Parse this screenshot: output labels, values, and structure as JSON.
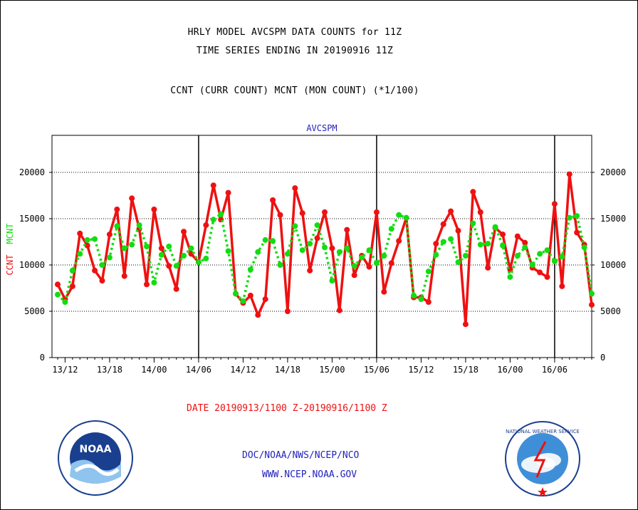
{
  "header": {
    "line1": "HRLY MODEL AVCSPM DATA COUNTS for 11Z",
    "line2": "TIME SERIES ENDING IN 20190916 11Z",
    "line3": "CCNT (CURR COUNT) MCNT (MON COUNT) (*1/100)"
  },
  "footer": {
    "date_range": "DATE 20190913/1100 Z-20190916/1100 Z",
    "org": "DOC/NOAA/NWS/NCEP/NCO",
    "url": "WWW.NCEP.NOAA.GOV"
  },
  "logos": {
    "left": "NOAA",
    "right": "NATIONAL WEATHER SERVICE"
  },
  "colors": {
    "ccnt": "#ee1111",
    "mcnt": "#11dd11",
    "title": "#000000",
    "plot_title": "#2222bb"
  },
  "chart_data": {
    "type": "line",
    "title": "AVCSPM",
    "ylabel_left": "CCNT",
    "ylabel_right": "MCNT",
    "ylim": [
      0,
      24000
    ],
    "yticks": [
      0,
      5000,
      10000,
      15000,
      20000
    ],
    "ytick_labels": [
      "0",
      "5000",
      "10000",
      "15000",
      "20000"
    ],
    "xlim": [
      11,
      83
    ],
    "xticks": [
      12,
      18,
      24,
      30,
      36,
      42,
      48,
      54,
      60,
      66,
      72,
      78
    ],
    "xtick_labels": [
      "13/12",
      "13/18",
      "14/00",
      "14/06",
      "14/12",
      "14/18",
      "15/00",
      "15/06",
      "15/12",
      "15/18",
      "16/00",
      "16/06"
    ],
    "day_boundaries": [
      30,
      54,
      78
    ],
    "grid_y": true,
    "x_units": "hours from 20190913/0000 Z",
    "series": [
      {
        "name": "CCNT",
        "values": [
          [
            11,
            7900
          ],
          [
            12,
            6300
          ],
          [
            13,
            7700
          ],
          [
            14,
            13400
          ],
          [
            15,
            12100
          ],
          [
            16,
            9400
          ],
          [
            17,
            8300
          ],
          [
            18,
            13300
          ],
          [
            19,
            16000
          ],
          [
            20,
            8800
          ],
          [
            21,
            17200
          ],
          [
            22,
            13900
          ],
          [
            23,
            7900
          ],
          [
            24,
            16000
          ],
          [
            25,
            11800
          ],
          [
            26,
            9900
          ],
          [
            27,
            7400
          ],
          [
            28,
            13600
          ],
          [
            29,
            11200
          ],
          [
            30,
            10300
          ],
          [
            31,
            14300
          ],
          [
            32,
            18600
          ],
          [
            33,
            14900
          ],
          [
            34,
            17800
          ],
          [
            35,
            6900
          ],
          [
            36,
            5900
          ],
          [
            37,
            6700
          ],
          [
            38,
            4600
          ],
          [
            39,
            6300
          ],
          [
            40,
            17000
          ],
          [
            41,
            15400
          ],
          [
            42,
            5000
          ],
          [
            43,
            18300
          ],
          [
            44,
            15600
          ],
          [
            45,
            9400
          ],
          [
            46,
            12900
          ],
          [
            47,
            15700
          ],
          [
            48,
            11800
          ],
          [
            49,
            5100
          ],
          [
            50,
            13800
          ],
          [
            51,
            8900
          ],
          [
            52,
            11000
          ],
          [
            53,
            9800
          ],
          [
            54,
            15700
          ],
          [
            55,
            7100
          ],
          [
            56,
            10200
          ],
          [
            57,
            12600
          ],
          [
            58,
            15100
          ],
          [
            59,
            6500
          ],
          [
            60,
            6500
          ],
          [
            61,
            6000
          ],
          [
            62,
            12300
          ],
          [
            63,
            14400
          ],
          [
            64,
            15800
          ],
          [
            65,
            13700
          ],
          [
            66,
            3600
          ],
          [
            67,
            17900
          ],
          [
            68,
            15700
          ],
          [
            69,
            9700
          ],
          [
            70,
            14000
          ],
          [
            71,
            13300
          ],
          [
            72,
            9500
          ],
          [
            73,
            13100
          ],
          [
            74,
            12400
          ],
          [
            75,
            9700
          ],
          [
            76,
            9200
          ],
          [
            77,
            8700
          ],
          [
            78,
            16600
          ],
          [
            79,
            7700
          ],
          [
            80,
            19800
          ],
          [
            81,
            13500
          ],
          [
            82,
            12200
          ],
          [
            83,
            5700
          ]
        ]
      },
      {
        "name": "MCNT",
        "values": [
          [
            11,
            6800
          ],
          [
            12,
            6000
          ],
          [
            13,
            9400
          ],
          [
            14,
            11200
          ],
          [
            15,
            12700
          ],
          [
            16,
            12800
          ],
          [
            17,
            10000
          ],
          [
            18,
            10800
          ],
          [
            19,
            14200
          ],
          [
            20,
            11800
          ],
          [
            21,
            12200
          ],
          [
            22,
            14300
          ],
          [
            23,
            12000
          ],
          [
            24,
            8100
          ],
          [
            25,
            11100
          ],
          [
            26,
            12000
          ],
          [
            27,
            9900
          ],
          [
            28,
            11000
          ],
          [
            29,
            11800
          ],
          [
            30,
            10300
          ],
          [
            31,
            10700
          ],
          [
            32,
            14900
          ],
          [
            33,
            15500
          ],
          [
            34,
            11500
          ],
          [
            35,
            6900
          ],
          [
            36,
            6100
          ],
          [
            37,
            9500
          ],
          [
            38,
            11400
          ],
          [
            39,
            12700
          ],
          [
            40,
            12600
          ],
          [
            41,
            10000
          ],
          [
            42,
            11200
          ],
          [
            43,
            14200
          ],
          [
            44,
            11600
          ],
          [
            45,
            12300
          ],
          [
            46,
            14300
          ],
          [
            47,
            11900
          ],
          [
            48,
            8300
          ],
          [
            49,
            11400
          ],
          [
            50,
            11800
          ],
          [
            51,
            9900
          ],
          [
            52,
            10800
          ],
          [
            53,
            11600
          ],
          [
            54,
            10200
          ],
          [
            55,
            11000
          ],
          [
            56,
            13900
          ],
          [
            57,
            15400
          ],
          [
            58,
            15100
          ],
          [
            59,
            6700
          ],
          [
            60,
            6300
          ],
          [
            61,
            9300
          ],
          [
            62,
            11100
          ],
          [
            63,
            12500
          ],
          [
            64,
            12800
          ],
          [
            65,
            10300
          ],
          [
            66,
            11000
          ],
          [
            67,
            14500
          ],
          [
            68,
            12200
          ],
          [
            69,
            12300
          ],
          [
            70,
            14100
          ],
          [
            71,
            12100
          ],
          [
            72,
            8700
          ],
          [
            73,
            11000
          ],
          [
            74,
            11900
          ],
          [
            75,
            10000
          ],
          [
            76,
            11200
          ],
          [
            77,
            11600
          ],
          [
            78,
            10400
          ],
          [
            79,
            10900
          ],
          [
            80,
            15100
          ],
          [
            81,
            15300
          ],
          [
            82,
            11900
          ],
          [
            83,
            6900
          ]
        ]
      }
    ]
  }
}
